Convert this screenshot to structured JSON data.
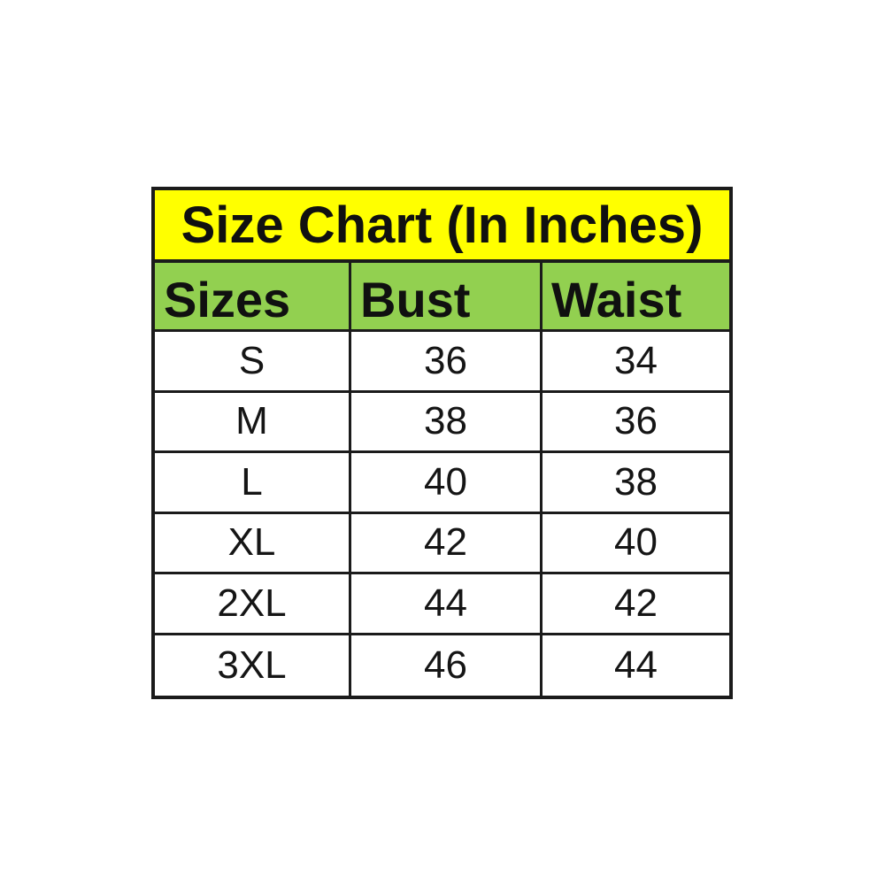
{
  "page": {
    "background_color": "#ffffff"
  },
  "table": {
    "title": "Size Chart (In Inches)",
    "title_bg_color": "#ffff00",
    "header_bg_color": "#92d050",
    "body_bg_color": "#ffffff",
    "border_color": "#1b1b1b",
    "columns": [
      "Sizes",
      "Bust",
      "Waist"
    ],
    "rows": [
      {
        "size": "S",
        "bust": "36",
        "waist": "34"
      },
      {
        "size": "M",
        "bust": "38",
        "waist": "36"
      },
      {
        "size": "L",
        "bust": "40",
        "waist": "38"
      },
      {
        "size": "XL",
        "bust": "42",
        "waist": "40"
      },
      {
        "size": "2XL",
        "bust": "44",
        "waist": "42"
      },
      {
        "size": "3XL",
        "bust": "46",
        "waist": "44"
      }
    ]
  },
  "chart_data": {
    "type": "table",
    "title": "Size Chart (In Inches)",
    "columns": [
      "Sizes",
      "Bust",
      "Waist"
    ],
    "rows": [
      [
        "S",
        36,
        34
      ],
      [
        "M",
        38,
        36
      ],
      [
        "L",
        40,
        38
      ],
      [
        "XL",
        42,
        40
      ],
      [
        "2XL",
        44,
        42
      ],
      [
        "3XL",
        46,
        44
      ]
    ],
    "units": "inches",
    "layout": {
      "title_row_background": "#ffff00",
      "header_row_background": "#92d050",
      "grid": "on"
    }
  }
}
